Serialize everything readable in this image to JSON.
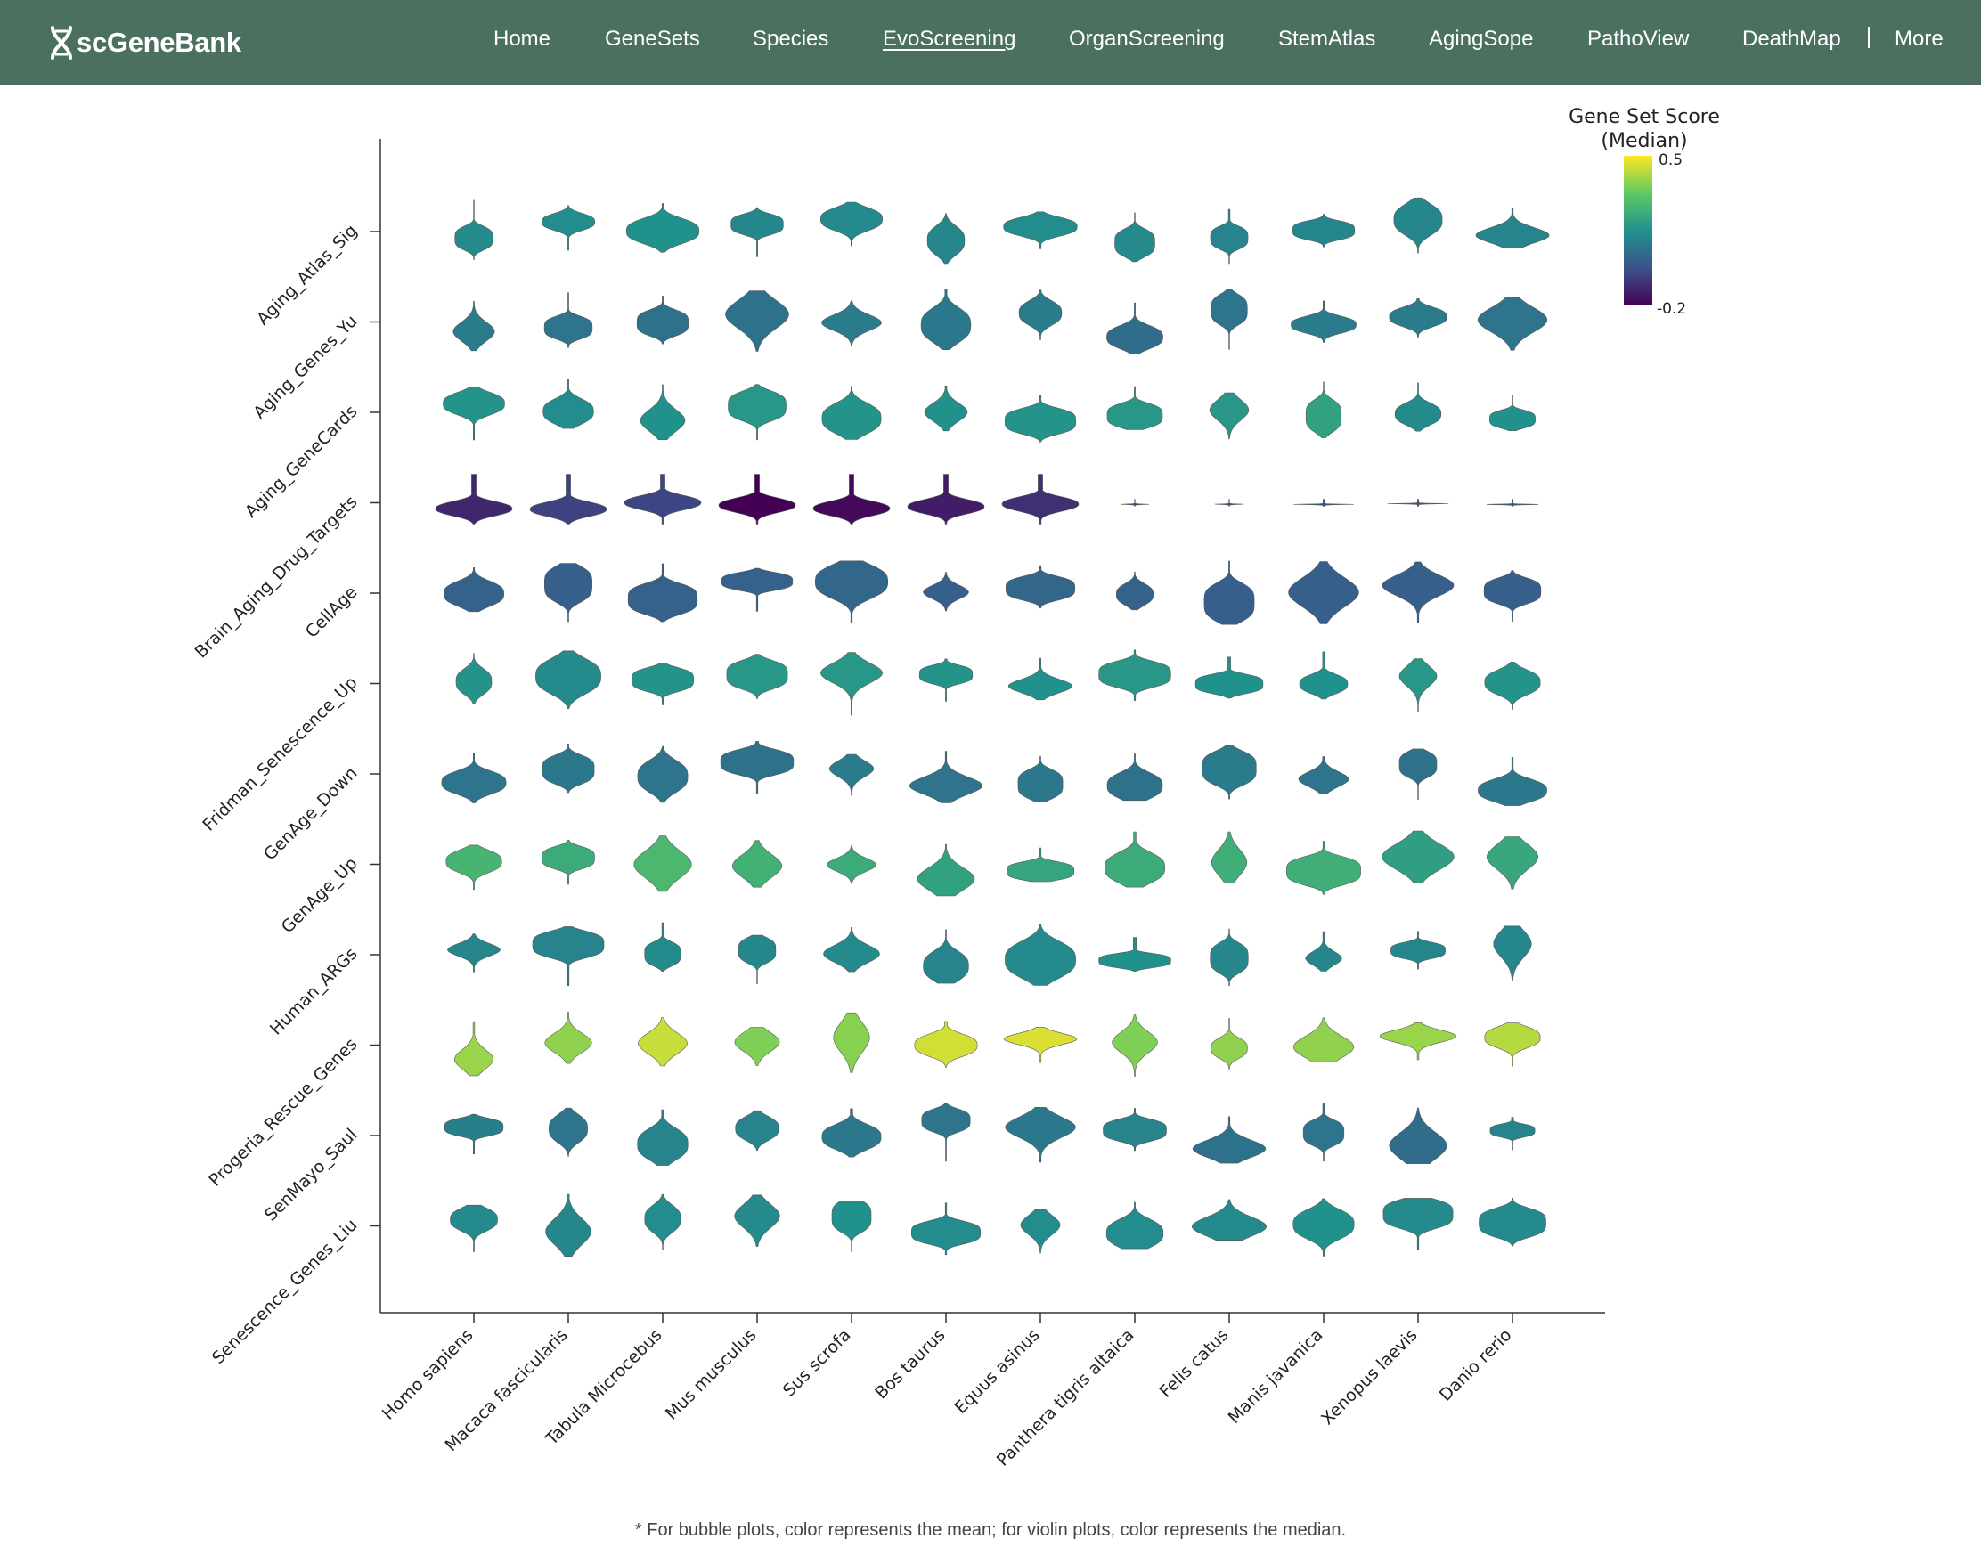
{
  "brand": {
    "name": "scGeneBank"
  },
  "nav": {
    "items": [
      {
        "label": "Home"
      },
      {
        "label": "GeneSets"
      },
      {
        "label": "Species"
      },
      {
        "label": "EvoScreening",
        "active": true
      },
      {
        "label": "OrganScreening"
      },
      {
        "label": "StemAtlas"
      },
      {
        "label": "AgingSope"
      },
      {
        "label": "PathoView"
      },
      {
        "label": "DeathMap"
      }
    ],
    "more_label": "More"
  },
  "chart_data": {
    "type": "violin",
    "title": "",
    "xlabel": "",
    "ylabel": "",
    "species": [
      "Homo sapiens",
      "Macaca fascicularis",
      "Tabula Microcebus",
      "Mus musculus",
      "Sus scrofa",
      "Bos taurus",
      "Equus asinus",
      "Panthera tigris altaica",
      "Felis catus",
      "Manis javanica",
      "Xenopus laevis",
      "Danio rerio"
    ],
    "gene_sets": [
      "Aging_Atlas_Sig",
      "Aging_Genes_Yu",
      "Aging_GeneCards",
      "Brain_Aging_Drug_Targets",
      "CellAge",
      "Fridman_Senescence_Up",
      "GenAge_Down",
      "GenAge_Up",
      "Human_ARGs",
      "Progeria_Rescue_Genes",
      "SenMayo_Saul",
      "Senescence_Genes_Liu"
    ],
    "median_scores": [
      [
        0.13,
        0.14,
        0.15,
        0.12,
        0.13,
        0.12,
        0.14,
        0.13,
        0.11,
        0.12,
        0.12,
        0.11
      ],
      [
        0.09,
        0.07,
        0.06,
        0.06,
        0.09,
        0.08,
        0.09,
        0.05,
        0.07,
        0.09,
        0.09,
        0.07
      ],
      [
        0.16,
        0.14,
        0.15,
        0.17,
        0.16,
        0.15,
        0.16,
        0.17,
        0.17,
        0.2,
        0.13,
        0.15
      ],
      [
        -0.12,
        -0.06,
        -0.05,
        -0.21,
        -0.18,
        -0.14,
        -0.1,
        -0.04,
        -0.04,
        -0.02,
        -0.02,
        -0.02
      ],
      [
        0.02,
        0.01,
        0.02,
        0.02,
        0.03,
        0.01,
        0.03,
        0.02,
        0.01,
        0.01,
        0.01,
        0.01
      ],
      [
        0.16,
        0.13,
        0.16,
        0.17,
        0.17,
        0.16,
        0.15,
        0.17,
        0.15,
        0.15,
        0.17,
        0.16
      ],
      [
        0.07,
        0.08,
        0.07,
        0.06,
        0.09,
        0.07,
        0.08,
        0.06,
        0.09,
        0.07,
        0.06,
        0.08
      ],
      [
        0.26,
        0.23,
        0.27,
        0.25,
        0.23,
        0.2,
        0.21,
        0.23,
        0.24,
        0.24,
        0.19,
        0.22
      ],
      [
        0.12,
        0.11,
        0.13,
        0.12,
        0.13,
        0.11,
        0.13,
        0.15,
        0.12,
        0.12,
        0.12,
        0.12
      ],
      [
        0.39,
        0.38,
        0.44,
        0.36,
        0.37,
        0.45,
        0.46,
        0.36,
        0.38,
        0.38,
        0.39,
        0.42
      ],
      [
        0.1,
        0.07,
        0.11,
        0.11,
        0.08,
        0.07,
        0.08,
        0.11,
        0.06,
        0.07,
        0.05,
        0.11
      ],
      [
        0.13,
        0.12,
        0.14,
        0.13,
        0.15,
        0.14,
        0.14,
        0.14,
        0.13,
        0.15,
        0.13,
        0.13
      ]
    ],
    "legend": {
      "title_lines": [
        "Gene Set Score",
        "(Median)"
      ],
      "max": 0.5,
      "min": -0.2,
      "max_label": "0.5",
      "min_label": "-0.2",
      "colormap": "viridis",
      "placement": "top-right"
    },
    "grid": false
  },
  "footnote": "* For bubble plots, color represents the mean; for violin plots, color represents the median."
}
